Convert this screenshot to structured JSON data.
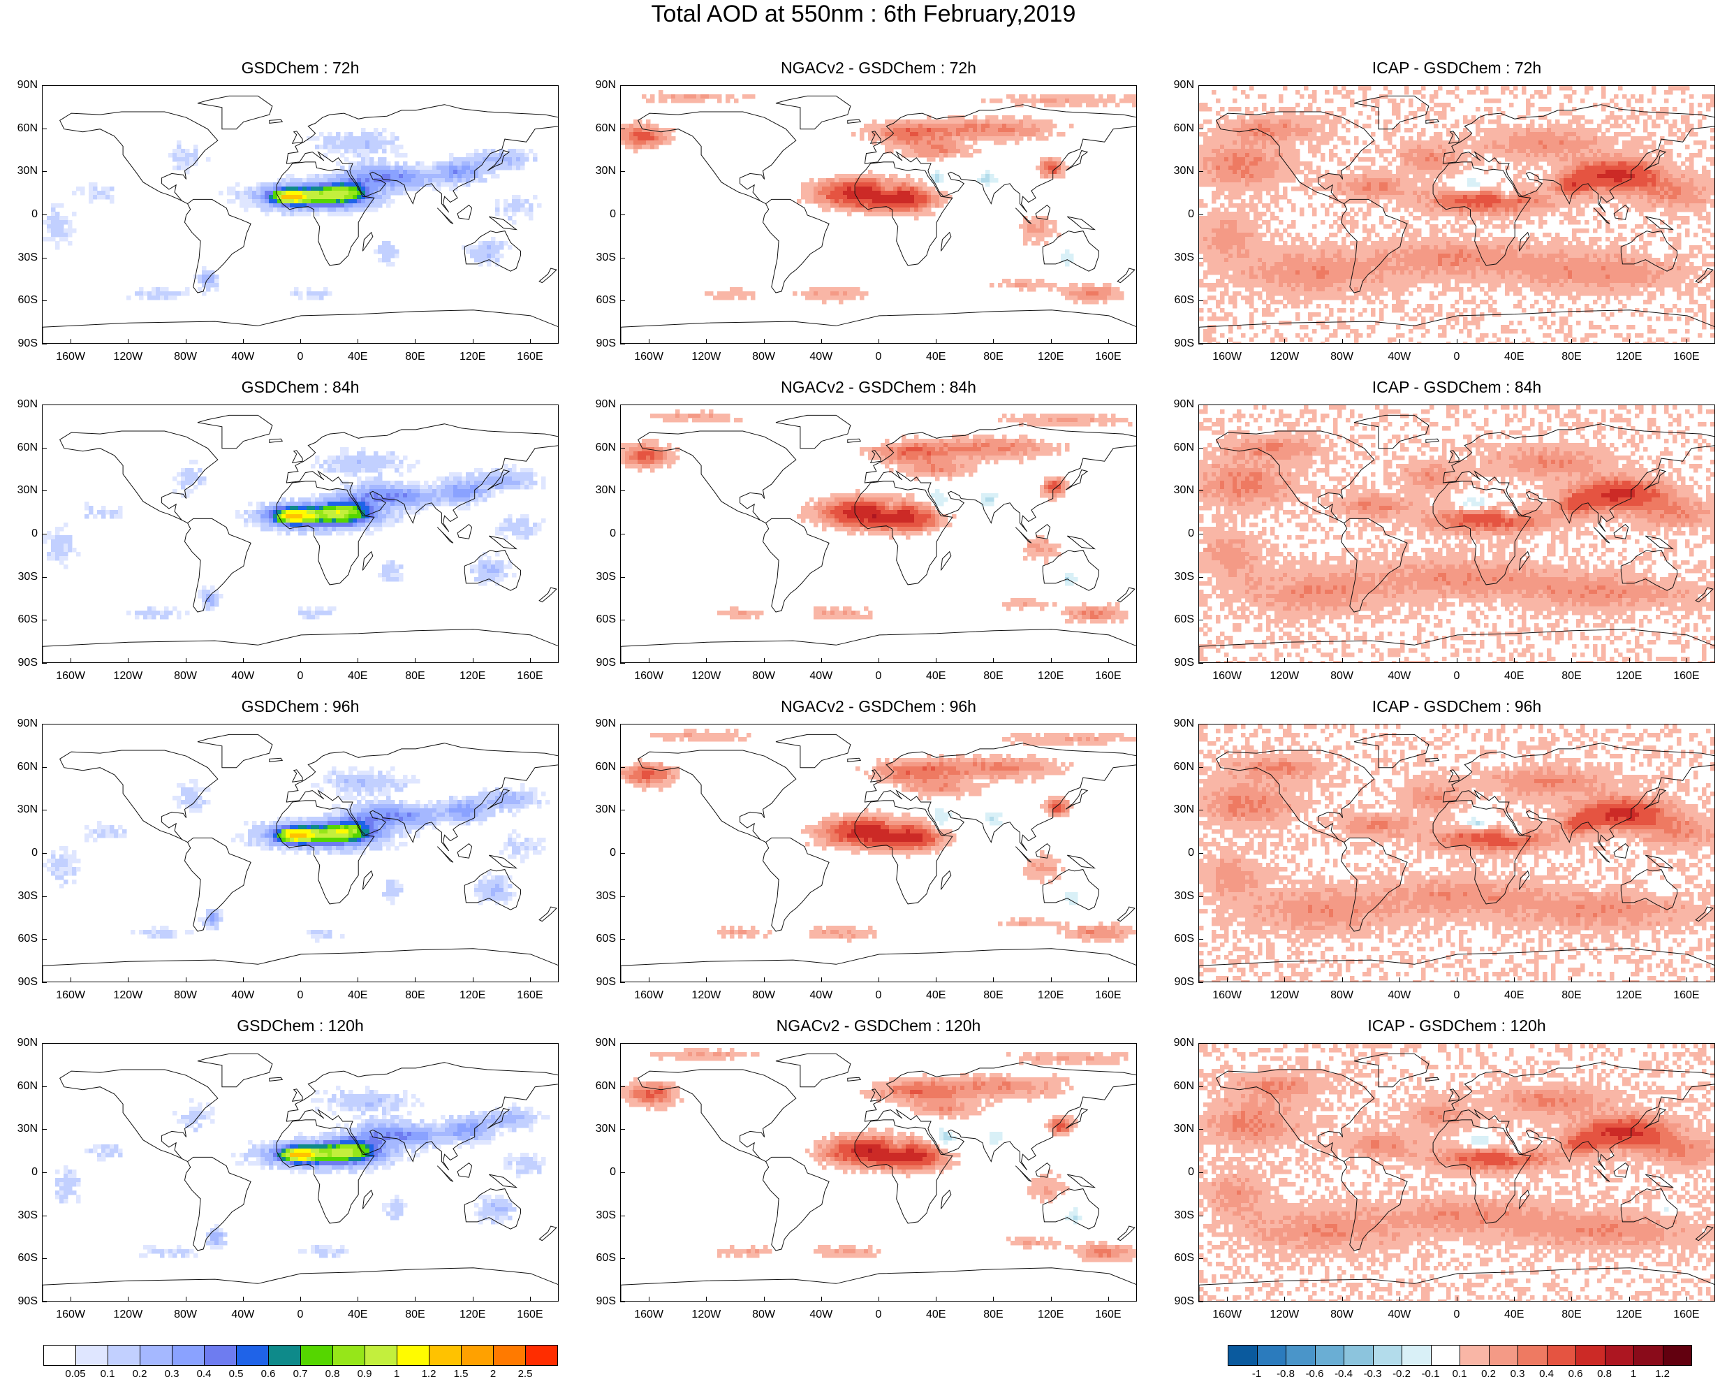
{
  "main_title": "Total AOD at 550nm : 6th February,2019",
  "lat_labels": [
    "90N",
    "60N",
    "30N",
    "0",
    "30S",
    "60S",
    "90S"
  ],
  "lon_labels": [
    "160W",
    "120W",
    "80W",
    "40W",
    "0",
    "40E",
    "80E",
    "120E",
    "160E"
  ],
  "panels": [
    {
      "title": "GSDChem : 72h",
      "kind": "abs",
      "variant": 0
    },
    {
      "title": "NGACv2 - GSDChem : 72h",
      "kind": "diff_ngac",
      "variant": 0
    },
    {
      "title": "ICAP - GSDChem : 72h",
      "kind": "diff_icap",
      "variant": 0
    },
    {
      "title": "GSDChem : 84h",
      "kind": "abs",
      "variant": 1
    },
    {
      "title": "NGACv2 - GSDChem : 84h",
      "kind": "diff_ngac",
      "variant": 1
    },
    {
      "title": "ICAP - GSDChem : 84h",
      "kind": "diff_icap",
      "variant": 1
    },
    {
      "title": "GSDChem : 96h",
      "kind": "abs",
      "variant": 2
    },
    {
      "title": "NGACv2 - GSDChem : 96h",
      "kind": "diff_ngac",
      "variant": 2
    },
    {
      "title": "ICAP - GSDChem : 96h",
      "kind": "diff_icap",
      "variant": 2
    },
    {
      "title": "GSDChem : 120h",
      "kind": "abs",
      "variant": 3
    },
    {
      "title": "NGACv2 - GSDChem : 120h",
      "kind": "diff_ngac",
      "variant": 3
    },
    {
      "title": "ICAP - GSDChem : 120h",
      "kind": "diff_icap",
      "variant": 3
    }
  ],
  "colorbar_abs": {
    "labels": [
      "0.05",
      "0.1",
      "0.2",
      "0.3",
      "0.4",
      "0.5",
      "0.6",
      "0.7",
      "0.8",
      "0.9",
      "1",
      "1.2",
      "1.5",
      "2",
      "2.5"
    ],
    "colors": [
      "#ffffff",
      "#dfe6ff",
      "#c2d0ff",
      "#a5b8ff",
      "#8aa2ff",
      "#6e7cf0",
      "#1f63e8",
      "#0e8a8a",
      "#55d600",
      "#96e619",
      "#c3ef3d",
      "#fffb00",
      "#ffc200",
      "#ffa100",
      "#ff7a00",
      "#ff2d00"
    ]
  },
  "colorbar_diff": {
    "labels": [
      "-1",
      "-0.8",
      "-0.6",
      "-0.4",
      "-0.3",
      "-0.2",
      "-0.1",
      "0.1",
      "0.2",
      "0.3",
      "0.4",
      "0.6",
      "0.8",
      "1",
      "1.2"
    ],
    "colors": [
      "#0a5a9e",
      "#2b7bbd",
      "#4a95c9",
      "#6aaed4",
      "#8cc4dd",
      "#b3dceb",
      "#d9f0f7",
      "#ffffff",
      "#f9b6a6",
      "#f49a86",
      "#ee7a62",
      "#e55441",
      "#cc2a26",
      "#ad1621",
      "#8a0b1a",
      "#62000f"
    ]
  }
}
